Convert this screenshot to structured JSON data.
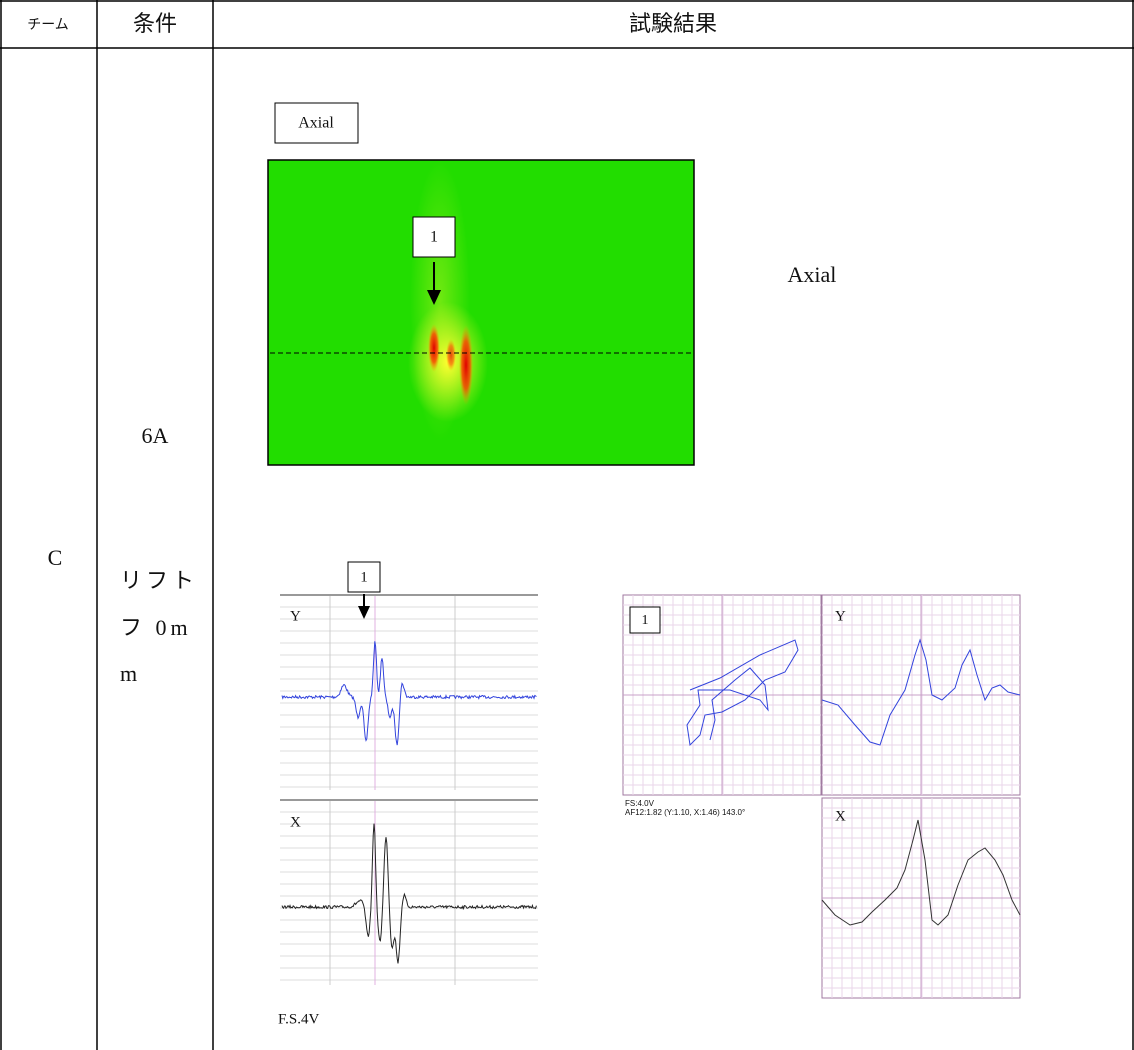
{
  "header": {
    "team": "チーム",
    "condition": "条件",
    "result": "試験結果"
  },
  "row": {
    "team": "C",
    "condition": [
      "6A",
      "リフト",
      "フ 0m",
      "m"
    ]
  },
  "results": {
    "axial_label": "Axial",
    "c_scan_marker": "1",
    "axial_caption": "Axial",
    "strip": {
      "marker": "1",
      "y_label": "Y",
      "x_label": "X",
      "scale": "F.S.4V"
    },
    "lissajous": {
      "marker": "1",
      "y_label": "Y",
      "x_label": "X",
      "scale": "FS:4.0V",
      "measurement": "AF12:1.82 (Y:1.10, X:1.46) 143.0°"
    }
  }
}
